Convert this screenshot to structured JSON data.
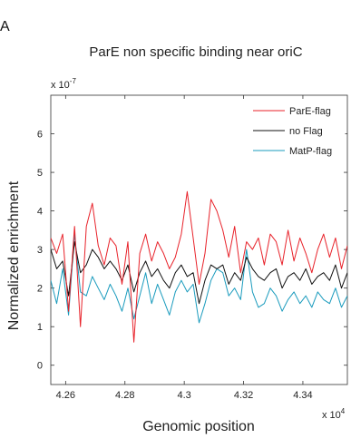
{
  "panel_label": "A",
  "chart_data": {
    "type": "line",
    "title": "ParE non specific binding near oriC",
    "xlabel": "Genomic position",
    "ylabel": "Normalized enrichment",
    "x_multiplier": "x 10",
    "x_exponent": "4",
    "y_multiplier": "x 10",
    "y_exponent": "-7",
    "xlim": [
      4.255,
      4.355
    ],
    "ylim": [
      -0.5,
      7
    ],
    "x_ticks": [
      "4.26",
      "4.28",
      "4.3",
      "4.32",
      "4.34"
    ],
    "x_tick_values": [
      4.26,
      4.28,
      4.3,
      4.32,
      4.34
    ],
    "y_ticks": [
      "0",
      "1",
      "2",
      "3",
      "4",
      "5",
      "6"
    ],
    "y_tick_values": [
      0,
      1,
      2,
      3,
      4,
      5,
      6
    ],
    "legend_position": "top-right",
    "grid": false,
    "x": [
      4.255,
      4.257,
      4.259,
      4.261,
      4.263,
      4.265,
      4.267,
      4.269,
      4.271,
      4.273,
      4.275,
      4.277,
      4.279,
      4.281,
      4.283,
      4.285,
      4.287,
      4.289,
      4.291,
      4.293,
      4.295,
      4.297,
      4.299,
      4.301,
      4.303,
      4.305,
      4.307,
      4.309,
      4.311,
      4.313,
      4.315,
      4.317,
      4.319,
      4.321,
      4.323,
      4.325,
      4.327,
      4.329,
      4.331,
      4.333,
      4.335,
      4.337,
      4.339,
      4.341,
      4.343,
      4.345,
      4.347,
      4.349,
      4.351,
      4.353,
      4.355
    ],
    "series": [
      {
        "name": "ParE-flag",
        "color": "#e8222a",
        "values": [
          3.3,
          2.9,
          3.4,
          1.4,
          3.6,
          1.0,
          3.6,
          4.2,
          3.1,
          2.6,
          3.3,
          3.1,
          2.1,
          3.2,
          0.6,
          2.9,
          3.4,
          2.7,
          3.2,
          2.9,
          2.5,
          2.8,
          3.4,
          4.5,
          3.3,
          2.1,
          2.9,
          4.3,
          4.0,
          3.5,
          2.8,
          3.6,
          2.4,
          3.2,
          3.0,
          3.3,
          2.6,
          3.4,
          3.2,
          2.6,
          3.5,
          2.7,
          3.3,
          2.9,
          2.4,
          3.0,
          3.4,
          2.8,
          3.3,
          2.5,
          3.1
        ]
      },
      {
        "name": "no Flag",
        "color": "#111111",
        "values": [
          3.0,
          2.5,
          2.7,
          1.8,
          3.2,
          2.4,
          2.6,
          3.0,
          2.8,
          2.5,
          2.7,
          2.5,
          2.2,
          2.6,
          1.9,
          2.4,
          2.7,
          2.3,
          2.5,
          2.2,
          2.0,
          2.4,
          2.6,
          2.3,
          2.4,
          1.6,
          2.2,
          2.6,
          2.5,
          2.6,
          2.1,
          2.4,
          2.2,
          2.8,
          2.5,
          2.3,
          2.2,
          2.4,
          2.5,
          2.0,
          2.3,
          2.4,
          2.2,
          2.5,
          2.1,
          2.3,
          2.4,
          2.2,
          2.6,
          2.0,
          2.4
        ]
      },
      {
        "name": "MatP-flag",
        "color": "#1a9bbd",
        "values": [
          2.2,
          1.6,
          2.5,
          1.3,
          3.4,
          1.9,
          1.8,
          2.3,
          2.0,
          1.7,
          2.1,
          1.8,
          1.4,
          2.0,
          1.2,
          1.8,
          2.4,
          1.6,
          2.1,
          1.7,
          1.3,
          1.9,
          2.2,
          1.9,
          2.1,
          1.1,
          1.6,
          2.2,
          2.5,
          2.4,
          1.8,
          2.0,
          1.7,
          3.0,
          1.9,
          1.5,
          1.6,
          2.0,
          1.8,
          1.4,
          1.7,
          1.9,
          1.6,
          1.8,
          1.5,
          1.9,
          1.7,
          1.6,
          2.0,
          1.5,
          1.8
        ]
      }
    ]
  }
}
